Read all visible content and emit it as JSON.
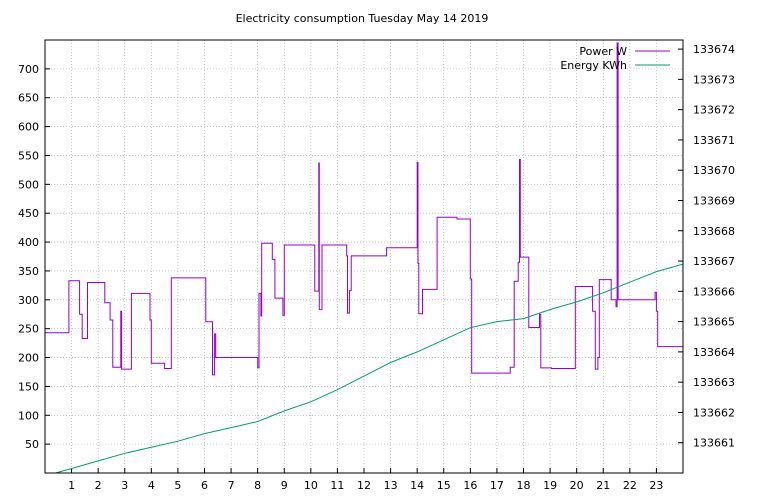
{
  "chart_data": {
    "type": "line",
    "title": "Electricity consumption Tuesday May 14 2019",
    "xlabel": "",
    "ylabel": "",
    "y2label": "",
    "xlim": [
      0,
      24
    ],
    "ylim": [
      0,
      750
    ],
    "y2lim": [
      133660,
      133674.3
    ],
    "grid": true,
    "legend": "top-right",
    "x_ticks": [
      "1",
      "2",
      "3",
      "4",
      "5",
      "6",
      "7",
      "8",
      "9",
      "10",
      "11",
      "12",
      "13",
      "14",
      "15",
      "16",
      "17",
      "18",
      "19",
      "20",
      "21",
      "22",
      "23"
    ],
    "y_ticks": [
      "50",
      "100",
      "150",
      "200",
      "250",
      "300",
      "350",
      "400",
      "450",
      "500",
      "550",
      "600",
      "650",
      "700"
    ],
    "y2_ticks": [
      "133661",
      "133662",
      "133663",
      "133664",
      "133665",
      "133666",
      "133667",
      "133668",
      "133669",
      "133670",
      "133671",
      "133672",
      "133673",
      "133674"
    ],
    "series": [
      {
        "name": "Power W",
        "axis": "y",
        "color": "#9400d3",
        "points": [
          [
            0,
            243
          ],
          [
            0.9,
            243
          ],
          [
            0.9,
            333
          ],
          [
            1.3,
            333
          ],
          [
            1.3,
            275
          ],
          [
            1.4,
            275
          ],
          [
            1.4,
            233
          ],
          [
            1.6,
            233
          ],
          [
            1.6,
            330
          ],
          [
            2.25,
            330
          ],
          [
            2.25,
            295
          ],
          [
            2.45,
            295
          ],
          [
            2.45,
            265
          ],
          [
            2.55,
            265
          ],
          [
            2.55,
            183
          ],
          [
            2.85,
            183
          ],
          [
            2.85,
            280
          ],
          [
            2.88,
            280
          ],
          [
            2.88,
            180
          ],
          [
            3.25,
            180
          ],
          [
            3.25,
            311
          ],
          [
            3.95,
            311
          ],
          [
            3.95,
            265
          ],
          [
            4.0,
            265
          ],
          [
            4.0,
            190
          ],
          [
            4.5,
            190
          ],
          [
            4.5,
            181
          ],
          [
            4.75,
            181
          ],
          [
            4.75,
            338
          ],
          [
            6.05,
            338
          ],
          [
            6.05,
            262
          ],
          [
            6.3,
            262
          ],
          [
            6.3,
            170
          ],
          [
            6.38,
            170
          ],
          [
            6.38,
            241
          ],
          [
            6.42,
            241
          ],
          [
            6.42,
            200
          ],
          [
            8.0,
            200
          ],
          [
            8.0,
            182
          ],
          [
            8.05,
            182
          ],
          [
            8.05,
            311
          ],
          [
            8.12,
            311
          ],
          [
            8.12,
            272
          ],
          [
            8.15,
            272
          ],
          [
            8.15,
            398
          ],
          [
            8.55,
            398
          ],
          [
            8.55,
            370
          ],
          [
            8.65,
            370
          ],
          [
            8.65,
            303
          ],
          [
            8.95,
            303
          ],
          [
            8.95,
            273
          ],
          [
            9.0,
            273
          ],
          [
            9.0,
            395
          ],
          [
            10.15,
            395
          ],
          [
            10.15,
            315
          ],
          [
            10.3,
            315
          ],
          [
            10.3,
            537
          ],
          [
            10.32,
            537
          ],
          [
            10.32,
            283
          ],
          [
            10.42,
            283
          ],
          [
            10.42,
            395
          ],
          [
            11.35,
            395
          ],
          [
            11.35,
            376
          ],
          [
            11.38,
            376
          ],
          [
            11.38,
            277
          ],
          [
            11.45,
            277
          ],
          [
            11.45,
            316
          ],
          [
            11.52,
            316
          ],
          [
            11.52,
            376
          ],
          [
            12.85,
            376
          ],
          [
            12.85,
            390
          ],
          [
            14.0,
            390
          ],
          [
            14.0,
            538
          ],
          [
            14.03,
            538
          ],
          [
            14.03,
            363
          ],
          [
            14.06,
            363
          ],
          [
            14.06,
            276
          ],
          [
            14.2,
            276
          ],
          [
            14.2,
            318
          ],
          [
            14.75,
            318
          ],
          [
            14.75,
            443
          ],
          [
            15.5,
            443
          ],
          [
            15.5,
            440
          ],
          [
            16.0,
            440
          ],
          [
            16.0,
            336
          ],
          [
            16.05,
            336
          ],
          [
            16.05,
            173
          ],
          [
            17.5,
            173
          ],
          [
            17.5,
            183
          ],
          [
            17.65,
            183
          ],
          [
            17.65,
            332
          ],
          [
            17.8,
            332
          ],
          [
            17.8,
            365
          ],
          [
            17.85,
            365
          ],
          [
            17.85,
            543
          ],
          [
            17.88,
            543
          ],
          [
            17.88,
            374
          ],
          [
            18.2,
            374
          ],
          [
            18.2,
            252
          ],
          [
            18.6,
            252
          ],
          [
            18.6,
            275
          ],
          [
            18.65,
            275
          ],
          [
            18.65,
            182
          ],
          [
            19.05,
            182
          ],
          [
            19.05,
            181
          ],
          [
            19.95,
            181
          ],
          [
            19.95,
            323
          ],
          [
            20.6,
            323
          ],
          [
            20.6,
            280
          ],
          [
            20.7,
            280
          ],
          [
            20.7,
            180
          ],
          [
            20.8,
            180
          ],
          [
            20.8,
            200
          ],
          [
            20.85,
            200
          ],
          [
            20.85,
            335
          ],
          [
            21.3,
            335
          ],
          [
            21.3,
            300
          ],
          [
            21.48,
            300
          ],
          [
            21.48,
            288
          ],
          [
            21.52,
            288
          ],
          [
            21.52,
            745
          ],
          [
            21.56,
            745
          ],
          [
            21.56,
            300
          ],
          [
            22.95,
            300
          ],
          [
            22.95,
            313
          ],
          [
            23.0,
            313
          ],
          [
            23.0,
            280
          ],
          [
            23.05,
            280
          ],
          [
            23.05,
            219
          ],
          [
            24.0,
            219
          ],
          [
            24.0,
            320
          ]
        ]
      },
      {
        "name": "Energy KWh",
        "axis": "y2",
        "color": "#009e73",
        "points": [
          [
            0.4,
            133660
          ],
          [
            1.0,
            133660.15
          ],
          [
            2.0,
            133660.4
          ],
          [
            3.0,
            133660.65
          ],
          [
            4.0,
            133660.85
          ],
          [
            5.0,
            133661.05
          ],
          [
            6.0,
            133661.3
          ],
          [
            7.0,
            133661.5
          ],
          [
            8.0,
            133661.7
          ],
          [
            9.0,
            133662.05
          ],
          [
            10.0,
            133662.35
          ],
          [
            11.0,
            133662.75
          ],
          [
            12.0,
            133663.2
          ],
          [
            13.0,
            133663.65
          ],
          [
            14.0,
            133664.0
          ],
          [
            15.0,
            133664.4
          ],
          [
            16.0,
            133664.8
          ],
          [
            17.0,
            133665.0
          ],
          [
            18.0,
            133665.1
          ],
          [
            19.0,
            133665.4
          ],
          [
            20.0,
            133665.65
          ],
          [
            21.0,
            133665.95
          ],
          [
            22.0,
            133666.3
          ],
          [
            23.0,
            133666.65
          ],
          [
            24.0,
            133666.9
          ]
        ]
      }
    ]
  }
}
